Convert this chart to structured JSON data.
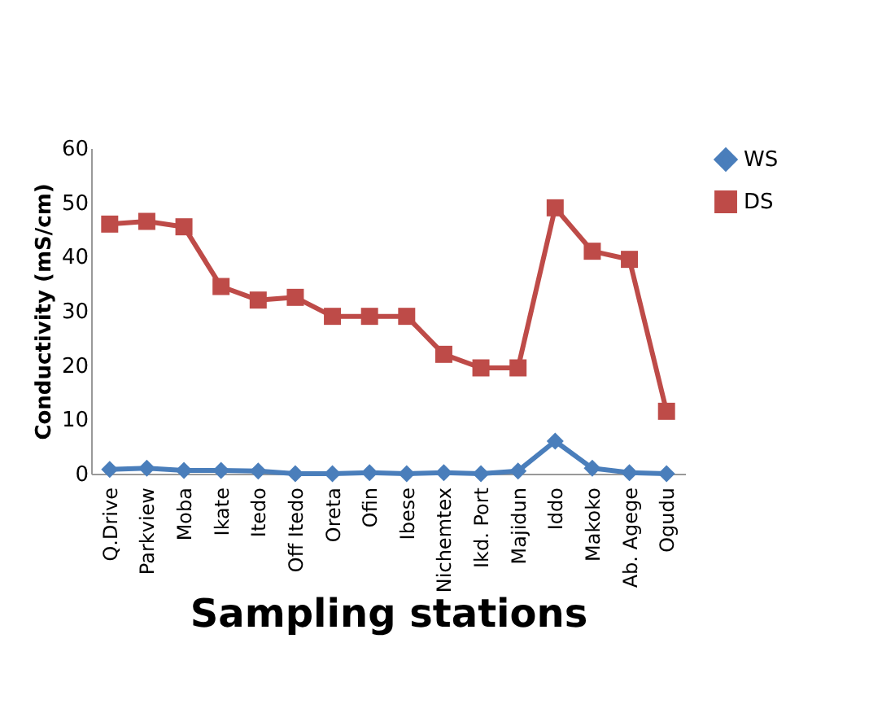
{
  "chart_data": {
    "type": "line",
    "xlabel": "Sampling stations",
    "ylabel": "Conductivity (mS/cm)",
    "categories": [
      "Q.Drive",
      "Parkview",
      "Moba",
      "Ikate",
      "Itedo",
      "Off Itedo",
      "Oreta",
      "Ofin",
      "Ibese",
      "Nichemtex",
      "Ikd. Port",
      "Majidun",
      "Iddo",
      "Makoko",
      "Ab. Agege",
      "Ogudu"
    ],
    "series": [
      {
        "name": "WS",
        "color": "#4a7ebb",
        "marker": "diamond",
        "values": [
          0.8,
          1,
          0.6,
          0.6,
          0.5,
          0,
          0,
          0.2,
          0,
          0.2,
          0,
          0.5,
          6,
          1,
          0.2,
          0
        ]
      },
      {
        "name": "DS",
        "color": "#be4b48",
        "marker": "square",
        "values": [
          46,
          46.5,
          45.5,
          34.5,
          32,
          32.5,
          29,
          29,
          29,
          22,
          19.5,
          19.5,
          49,
          41,
          39.5,
          11.5
        ]
      }
    ],
    "ylim": [
      0,
      60
    ],
    "yticks": [
      0,
      10,
      20,
      30,
      40,
      50,
      60
    ],
    "grid": false,
    "legend": "right"
  }
}
